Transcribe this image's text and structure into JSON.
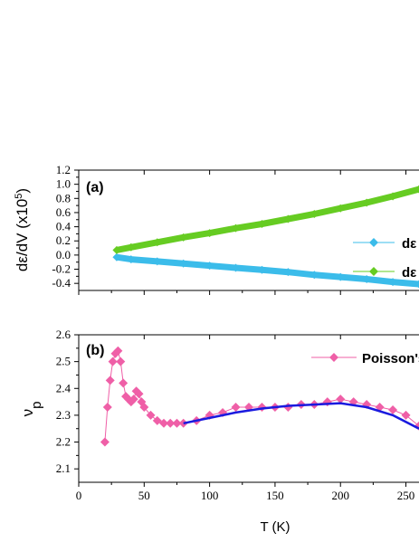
{
  "chart_data": [
    {
      "panel_label": "(a)",
      "type": "scatter",
      "ylabel": "dε/dV (x10",
      "ylabel_sup": "5",
      "ylabel_end": ")",
      "ylim": [
        -0.5,
        1.2
      ],
      "yticks": [
        "-0.4",
        "-0.2",
        "0.0",
        "0.2",
        "0.4",
        "0.6",
        "0.8",
        "1.0",
        "1.2"
      ],
      "legend_position": "right",
      "series": [
        {
          "name": "dε",
          "color": "#3bbcea",
          "marker": "diamond",
          "x": [
            29,
            40,
            60,
            80,
            100,
            120,
            140,
            160,
            180,
            200,
            220,
            240,
            260
          ],
          "y": [
            -0.03,
            -0.06,
            -0.09,
            -0.12,
            -0.15,
            -0.18,
            -0.21,
            -0.24,
            -0.28,
            -0.31,
            -0.34,
            -0.38,
            -0.41
          ]
        },
        {
          "name": "dε",
          "color": "#66cc22",
          "marker": "diamond",
          "x": [
            29,
            40,
            60,
            80,
            100,
            120,
            140,
            160,
            180,
            200,
            220,
            240,
            260
          ],
          "y": [
            0.07,
            0.11,
            0.18,
            0.25,
            0.31,
            0.38,
            0.44,
            0.51,
            0.58,
            0.66,
            0.74,
            0.83,
            0.93
          ]
        }
      ]
    },
    {
      "panel_label": "(b)",
      "type": "line",
      "ylabel": "ν",
      "ylabel_sub": "p",
      "xlabel": "T (K)",
      "xlim": [
        0,
        260
      ],
      "xticks": [
        "0",
        "50",
        "100",
        "150",
        "200",
        "250"
      ],
      "ylim": [
        2.05,
        2.6
      ],
      "yticks": [
        "2.1",
        "2.2",
        "2.3",
        "2.4",
        "2.5",
        "2.6"
      ],
      "legend_position": "top-right",
      "series": [
        {
          "name": "Poisson's",
          "color": "#ef5fa7",
          "marker": "diamond",
          "x": [
            20,
            22,
            24,
            26,
            28,
            30,
            32,
            34,
            36,
            38,
            40,
            42,
            44,
            46,
            48,
            50,
            55,
            60,
            65,
            70,
            75,
            80,
            90,
            100,
            110,
            120,
            130,
            140,
            150,
            160,
            170,
            180,
            190,
            200,
            210,
            220,
            230,
            240,
            250,
            260
          ],
          "y": [
            2.2,
            2.33,
            2.43,
            2.5,
            2.53,
            2.54,
            2.5,
            2.42,
            2.37,
            2.36,
            2.35,
            2.36,
            2.39,
            2.38,
            2.35,
            2.33,
            2.3,
            2.28,
            2.27,
            2.27,
            2.27,
            2.27,
            2.28,
            2.3,
            2.31,
            2.33,
            2.33,
            2.33,
            2.33,
            2.33,
            2.34,
            2.34,
            2.35,
            2.36,
            2.35,
            2.34,
            2.33,
            2.32,
            2.3,
            2.26
          ]
        },
        {
          "name": "",
          "color": "#1a1adf",
          "marker": "none",
          "x": [
            80,
            100,
            120,
            140,
            160,
            180,
            200,
            220,
            240,
            260
          ],
          "y": [
            2.27,
            2.29,
            2.31,
            2.325,
            2.335,
            2.34,
            2.345,
            2.33,
            2.3,
            2.25
          ]
        }
      ]
    }
  ]
}
